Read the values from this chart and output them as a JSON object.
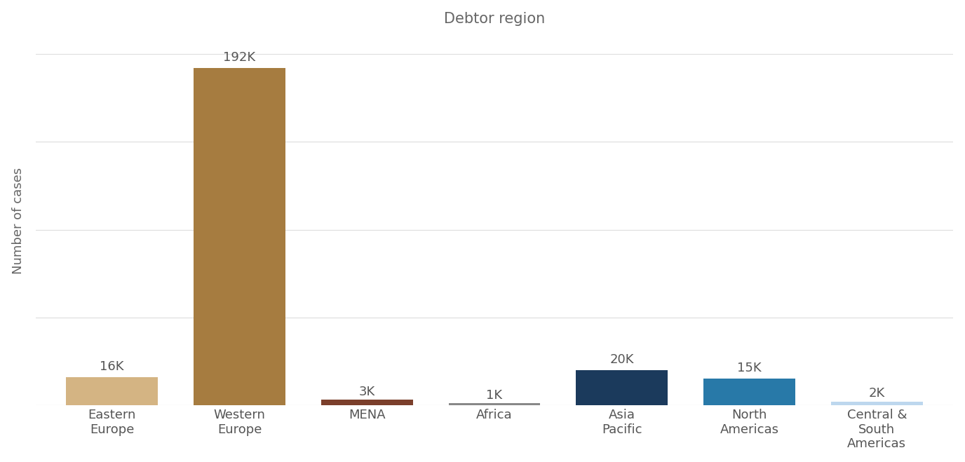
{
  "categories": [
    "Eastern\nEurope",
    "Western\nEurope",
    "MENA",
    "Africa",
    "Asia\nPacific",
    "North\nAmericas",
    "Central &\nSouth\nAmericas"
  ],
  "values": [
    16000,
    192000,
    3000,
    1000,
    20000,
    15000,
    2000
  ],
  "labels": [
    "16K",
    "192K",
    "3K",
    "1K",
    "20K",
    "15K",
    "2K"
  ],
  "bar_colors": [
    "#D4B483",
    "#A67C40",
    "#7B3F2B",
    "#888888",
    "#1B3A5C",
    "#2879A8",
    "#BDD7EE"
  ],
  "title": "Debtor region",
  "ylabel": "Number of cases",
  "title_fontsize": 15,
  "label_fontsize": 13,
  "ylabel_fontsize": 13,
  "tick_fontsize": 13,
  "background_color": "#ffffff",
  "grid_color": "#e0e0e0",
  "title_color": "#666666",
  "axis_label_color": "#666666",
  "tick_label_color": "#555555",
  "bar_label_color": "#555555",
  "ylim": [
    0,
    210000
  ],
  "num_gridlines": 5
}
